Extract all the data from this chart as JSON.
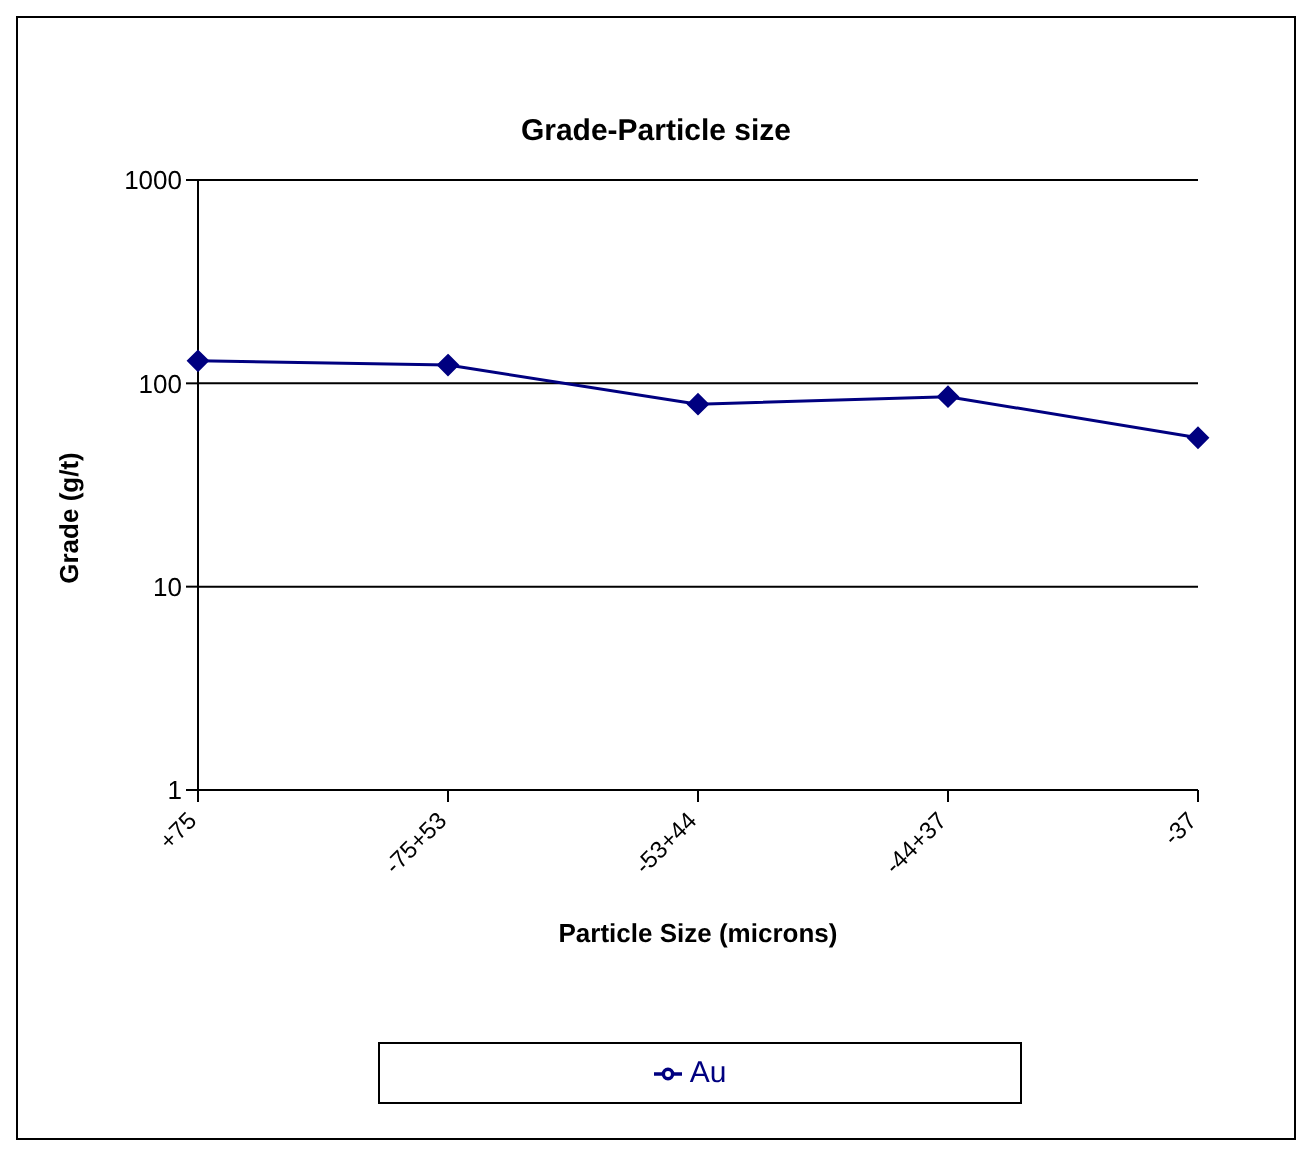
{
  "chart_data": {
    "type": "line",
    "title": "Grade-Particle size",
    "xlabel": "Particle Size (microns)",
    "ylabel": "Grade (g/t)",
    "categories": [
      "+75",
      "-75+53",
      "-53+44",
      "-44+37",
      "-37"
    ],
    "series": [
      {
        "name": "Au",
        "color": "#000080",
        "values": [
          129,
          123,
          79,
          86,
          54
        ]
      }
    ],
    "log": "y",
    "ylim": [
      1,
      1000
    ],
    "yticks": [
      1,
      10,
      100,
      1000
    ],
    "grid": "y",
    "legend": "bottom",
    "marker": "diamond",
    "line_style": "solid"
  }
}
